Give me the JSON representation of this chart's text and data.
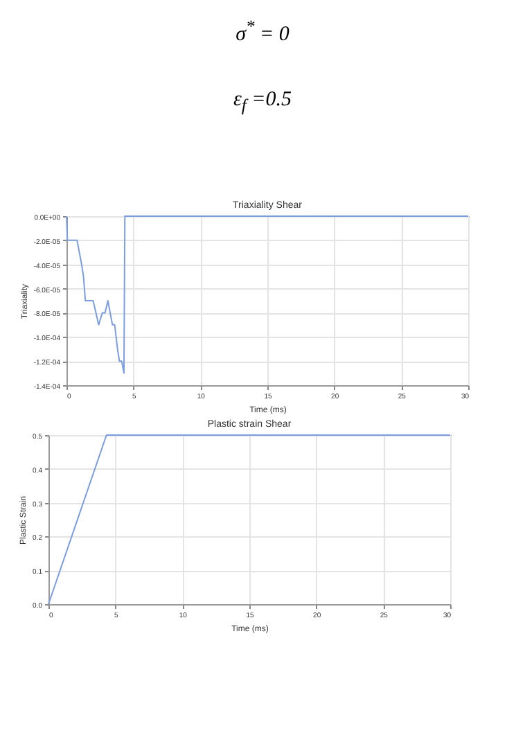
{
  "chart_data": [
    {
      "type": "line",
      "title": "Triaxiality Shear",
      "xlabel": "Time (ms)",
      "ylabel": "Triaxiality",
      "annotations": [
        "σ$^{*}$ = 0",
        "ε$_{f}$ =0.5"
      ],
      "series": [
        {
          "color": "#7b9de0",
          "x": [
            0,
            0.07,
            0.2,
            0.38,
            0.58,
            0.79,
            0.96,
            1.13,
            1.27,
            1.41,
            1.58,
            1.79,
            1.99,
            2.2,
            2.4,
            2.68,
            2.88,
            3.09,
            3.26,
            3.43,
            3.6,
            3.81,
            3.95,
            4.12,
            4.29,
            4.36,
            30
          ],
          "values": [
            0,
            -2e-05,
            -2e-05,
            -2e-05,
            -2e-05,
            -2e-05,
            -3e-05,
            -4e-05,
            -5e-05,
            -7e-05,
            -7e-05,
            -7e-05,
            -7e-05,
            -8e-05,
            -9e-05,
            -8e-05,
            -8e-05,
            -7e-05,
            -8e-05,
            -9e-05,
            -9e-05,
            -0.00011,
            -0.00012,
            -0.00012,
            -0.00013,
            0,
            0
          ]
        }
      ],
      "xlim": [
        0,
        30
      ],
      "xticks": [
        0,
        5,
        10,
        15,
        20,
        25,
        30
      ],
      "ylim": [
        -0.00014,
        0
      ],
      "yticks": [
        {
          "value": -0.00014,
          "label": "-1.4E-04"
        },
        {
          "value": -0.00012,
          "label": "-1.2E-04"
        },
        {
          "value": -0.0001,
          "label": "-1.0E-04"
        },
        {
          "value": -8e-05,
          "label": "-8.0E-05"
        },
        {
          "value": -6e-05,
          "label": "-6.0E-05"
        },
        {
          "value": -4e-05,
          "label": "-4.0E-05"
        },
        {
          "value": -2e-05,
          "label": "-2.0E-05"
        },
        {
          "value": 0,
          "label": "0.0E+00"
        }
      ],
      "grid": true,
      "marker": "none",
      "line_style": "solid"
    },
    {
      "type": "line",
      "title": "Plastic strain Shear",
      "xlabel": "Time (ms)",
      "ylabel": "Plastic Strain",
      "series": [
        {
          "color": "#7b9de0",
          "x": [
            0,
            4.33,
            30
          ],
          "values": [
            0,
            0.5,
            0.5
          ]
        }
      ],
      "xlim": [
        0,
        30
      ],
      "xticks": [
        0,
        5,
        10,
        15,
        20,
        25,
        30
      ],
      "ylim": [
        0,
        0.5
      ],
      "yticks": [
        {
          "value": 0,
          "label": "0.0"
        },
        0.1,
        0.2,
        0.3,
        0.4,
        0.5
      ],
      "grid": true,
      "marker": "none",
      "line_style": "solid"
    }
  ]
}
